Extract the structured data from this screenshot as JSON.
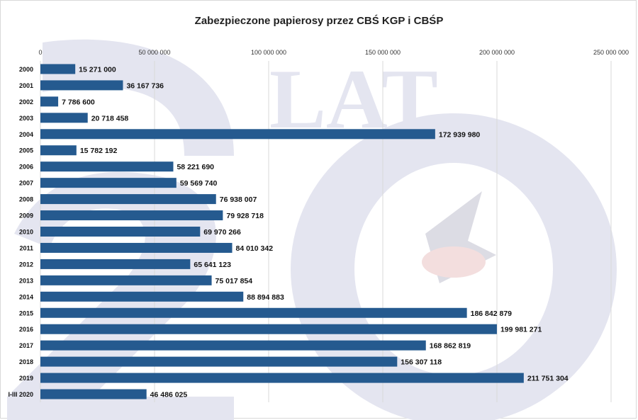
{
  "title": "Zabezpieczone papierosy przez CBŚ KGP i CBŚP",
  "watermark_text": "20 LAT CBŚ",
  "colors": {
    "bar": "#255a8f",
    "grid": "#d9d9d9",
    "watermark": "#e3e3ef"
  },
  "chart_data": {
    "type": "bar",
    "orientation": "horizontal",
    "title": "Zabezpieczone papierosy przez CBŚ KGP i CBŚP",
    "xlim": [
      0,
      250000000
    ],
    "xticks": [
      0,
      50000000,
      100000000,
      150000000,
      200000000,
      250000000
    ],
    "xtick_labels": [
      "0",
      "50 000 000",
      "100 000 000",
      "150 000 000",
      "200 000 000",
      "250 000 000"
    ],
    "x_axis_position": "top",
    "grid": true,
    "categories": [
      "2000",
      "2001",
      "2002",
      "2003",
      "2004",
      "2005",
      "2006",
      "2007",
      "2008",
      "2009",
      "2010",
      "2011",
      "2012",
      "2013",
      "2014",
      "2015",
      "2016",
      "2017",
      "2018",
      "2019",
      "I-III 2020"
    ],
    "values": [
      15271000,
      36167736,
      7786600,
      20718458,
      172939980,
      15782192,
      58221690,
      59569740,
      76938007,
      79928718,
      69970266,
      84010342,
      65641123,
      75017854,
      88894883,
      186842879,
      199981271,
      168862819,
      156307118,
      211751304,
      46486025
    ],
    "data_labels": [
      "15 271 000",
      "36 167 736",
      "7 786 600",
      "20 718 458",
      "172 939 980",
      "15 782 192",
      "58 221 690",
      "59 569 740",
      "76 938 007",
      "79 928 718",
      "69 970 266",
      "84 010 342",
      "65 641 123",
      "75 017 854",
      "88 894 883",
      "186 842 879",
      "199 981 271",
      "168 862 819",
      "156 307 118",
      "211 751 304",
      "46 486 025"
    ]
  }
}
